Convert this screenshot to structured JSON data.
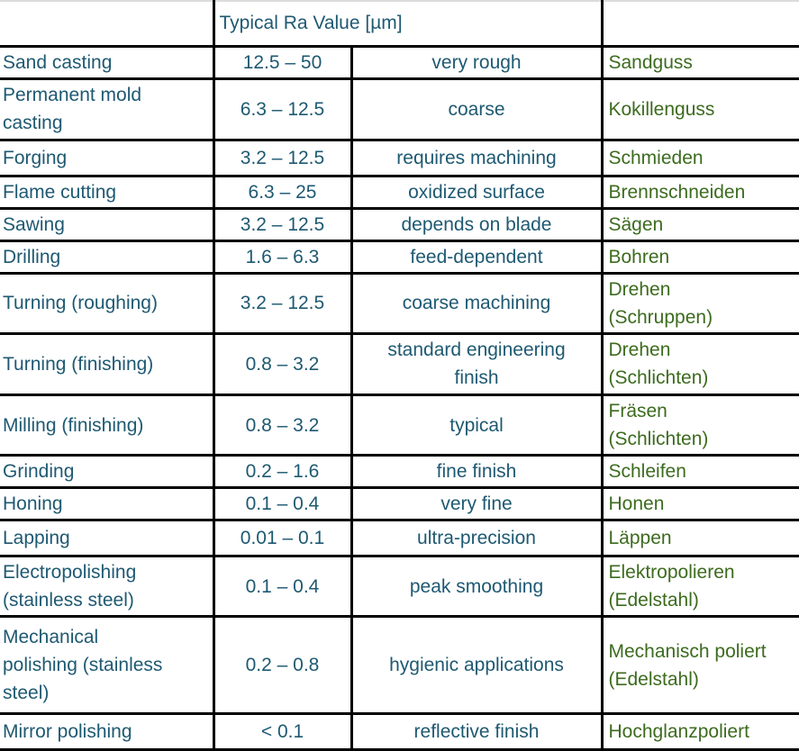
{
  "header": {
    "blank_left": "",
    "ra_title": "Typical Ra Value [µm]",
    "blank_right": ""
  },
  "rows": [
    {
      "process": "Sand casting",
      "ra": "12.5 – 50",
      "description": "very rough",
      "german": "Sandguss"
    },
    {
      "process": "Permanent mold\ncasting",
      "ra": "6.3 – 12.5",
      "description": "coarse",
      "german": "Kokillenguss"
    },
    {
      "process": "Forging",
      "ra": "3.2 – 12.5",
      "description": "requires machining",
      "german": "Schmieden"
    },
    {
      "process": "Flame cutting",
      "ra": "6.3 – 25",
      "description": "oxidized surface",
      "german": "Brennschneiden"
    },
    {
      "process": "Sawing",
      "ra": "3.2 – 12.5",
      "description": "depends on blade",
      "german": "Sägen"
    },
    {
      "process": "Drilling",
      "ra": "1.6 – 6.3",
      "description": "feed-dependent",
      "german": "Bohren"
    },
    {
      "process": "Turning (roughing)",
      "ra": "3.2 – 12.5",
      "description": "coarse machining",
      "german": "Drehen\n(Schruppen)"
    },
    {
      "process": "Turning (finishing)",
      "ra": "0.8 – 3.2",
      "description": "standard engineering\nfinish",
      "german": "Drehen\n(Schlichten)"
    },
    {
      "process": "Milling (finishing)",
      "ra": "0.8 – 3.2",
      "description": "typical",
      "german": "Fräsen\n(Schlichten)"
    },
    {
      "process": "Grinding",
      "ra": "0.2 – 1.6",
      "description": "fine finish",
      "german": "Schleifen"
    },
    {
      "process": "Honing",
      "ra": "0.1 – 0.4",
      "description": "very fine",
      "german": "Honen"
    },
    {
      "process": "Lapping",
      "ra": "0.01 – 0.1",
      "description": "ultra-precision",
      "german": "Läppen"
    },
    {
      "process": "Electropolishing\n(stainless steel)",
      "ra": "0.1 – 0.4",
      "description": "peak smoothing",
      "german": "Elektropolieren\n(Edelstahl)"
    },
    {
      "process": "Mechanical\npolishing (stainless\nsteel)",
      "ra": "0.2 – 0.8",
      "description": "hygienic applications",
      "german": "Mechanisch poliert\n(Edelstahl)"
    },
    {
      "process": "Mirror polishing",
      "ra": "< 0.1",
      "description": "reflective finish",
      "german": "Hochglanzpoliert"
    }
  ],
  "colors": {
    "english_text": "#1E5972",
    "german_text": "#3C6B1E",
    "border": "#000000",
    "top_rule": "#DCDCDC",
    "background": "#FFFFFF"
  }
}
